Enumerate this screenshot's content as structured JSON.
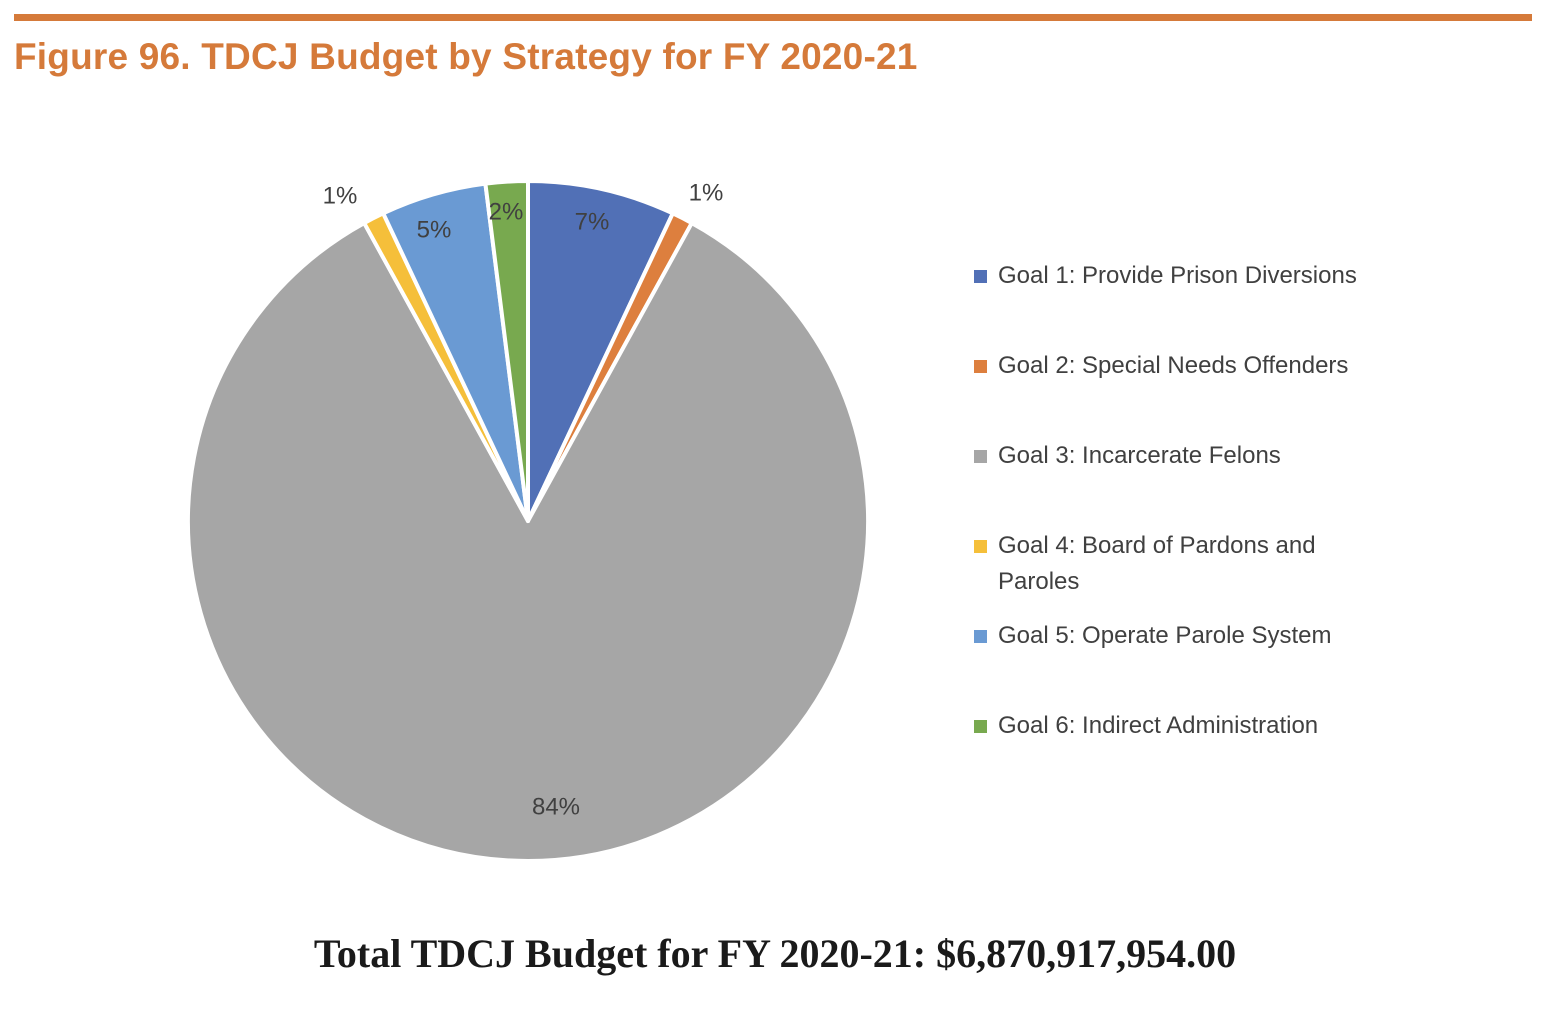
{
  "header": {
    "title": "Figure 96. TDCJ Budget by Strategy for FY 2020-21"
  },
  "chart_data": {
    "type": "pie",
    "title": "",
    "slices": [
      {
        "name": "Goal 1: Provide Prison Diversions",
        "value": 7,
        "label": "7%",
        "color": "#5170b6"
      },
      {
        "name": "Goal 2: Special Needs Offenders",
        "value": 1,
        "label": "1%",
        "color": "#dd7f3e"
      },
      {
        "name": "Goal 3: Incarcerate Felons",
        "value": 84,
        "label": "84%",
        "color": "#a6a6a6"
      },
      {
        "name": "Goal 4: Board of Pardons and Paroles",
        "value": 1,
        "label": "1%",
        "color": "#f5bf3a"
      },
      {
        "name": "Goal 5: Operate Parole System",
        "value": 5,
        "label": "5%",
        "color": "#6a9ad3"
      },
      {
        "name": "Goal 6: Indirect Administration",
        "value": 2,
        "label": "2%",
        "color": "#78a94f"
      }
    ],
    "legend_position": "right"
  },
  "footer": {
    "total_text": "Total TDCJ Budget for FY 2020-21: $6,870,917,954.00"
  }
}
